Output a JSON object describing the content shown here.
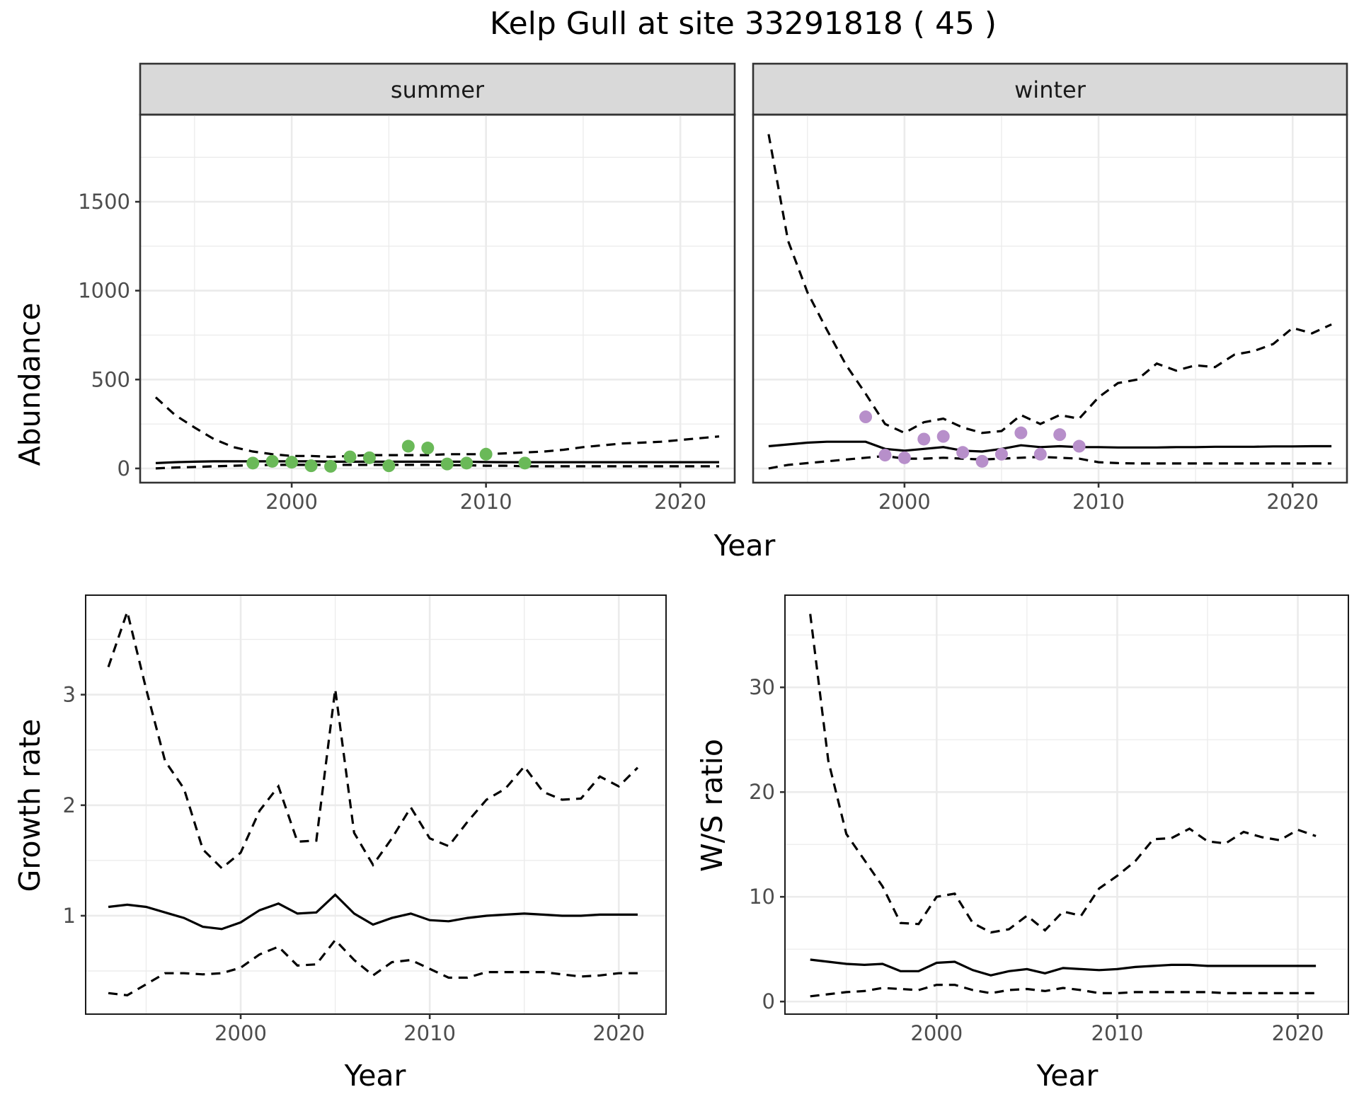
{
  "title": "Kelp Gull at site 33291818 ( 45 )",
  "chart_data": [
    {
      "id": "abundance",
      "type": "line",
      "facets": [
        "summer",
        "winter"
      ],
      "xlabel": "Year",
      "ylabel": "Abundance",
      "xlim": [
        1992.2,
        2022.8
      ],
      "ylim": [
        -80,
        1990
      ],
      "xticks": [
        2000,
        2010,
        2020
      ],
      "yticks": [
        0,
        500,
        1000,
        1500
      ],
      "point_colors": {
        "summer": "#6ab958",
        "winter": "#b78fca"
      },
      "panels": {
        "summer": {
          "years": [
            1993,
            1994,
            1995,
            1996,
            1997,
            1998,
            1999,
            2000,
            2001,
            2002,
            2003,
            2004,
            2005,
            2006,
            2007,
            2008,
            2009,
            2010,
            2011,
            2012,
            2013,
            2014,
            2015,
            2016,
            2017,
            2018,
            2019,
            2020,
            2021,
            2022
          ],
          "estimate": [
            30,
            35,
            38,
            40,
            40,
            40,
            40,
            40,
            40,
            38,
            38,
            38,
            38,
            38,
            38,
            38,
            38,
            36,
            35,
            35,
            35,
            35,
            35,
            35,
            35,
            35,
            35,
            35,
            35,
            35
          ],
          "upper": [
            400,
            300,
            230,
            165,
            120,
            95,
            80,
            70,
            70,
            65,
            70,
            75,
            75,
            75,
            75,
            80,
            80,
            80,
            85,
            90,
            95,
            105,
            120,
            130,
            140,
            145,
            150,
            160,
            170,
            180
          ],
          "lower": [
            0,
            5,
            8,
            12,
            15,
            18,
            20,
            20,
            20,
            20,
            20,
            20,
            20,
            20,
            20,
            18,
            18,
            15,
            15,
            12,
            12,
            12,
            12,
            12,
            12,
            12,
            12,
            12,
            12,
            12
          ],
          "observed_years": [
            1998,
            1999,
            2000,
            2001,
            2002,
            2003,
            2004,
            2005,
            2006,
            2007,
            2008,
            2009,
            2010,
            2012
          ],
          "observed": [
            30,
            40,
            35,
            15,
            12,
            65,
            60,
            15,
            125,
            115,
            25,
            30,
            80,
            30
          ]
        },
        "winter": {
          "years": [
            1993,
            1994,
            1995,
            1996,
            1997,
            1998,
            1999,
            2000,
            2001,
            2002,
            2003,
            2004,
            2005,
            2006,
            2007,
            2008,
            2009,
            2010,
            2011,
            2012,
            2013,
            2014,
            2015,
            2016,
            2017,
            2018,
            2019,
            2020,
            2021,
            2022
          ],
          "estimate": [
            125,
            135,
            145,
            150,
            150,
            150,
            110,
            100,
            110,
            120,
            100,
            95,
            110,
            130,
            120,
            125,
            120,
            120,
            118,
            118,
            118,
            120,
            120,
            122,
            122,
            122,
            124,
            124,
            125,
            125
          ],
          "upper": [
            1880,
            1280,
            990,
            780,
            580,
            420,
            250,
            200,
            260,
            280,
            230,
            200,
            210,
            300,
            250,
            300,
            280,
            400,
            480,
            500,
            590,
            550,
            580,
            570,
            640,
            660,
            700,
            790,
            760,
            810
          ],
          "lower": [
            0,
            20,
            30,
            40,
            50,
            60,
            70,
            55,
            55,
            60,
            55,
            50,
            55,
            60,
            65,
            60,
            55,
            35,
            30,
            28,
            28,
            28,
            28,
            28,
            28,
            28,
            28,
            28,
            28,
            28
          ],
          "observed_years": [
            1998,
            1999,
            2000,
            2001,
            2002,
            2003,
            2004,
            2005,
            2006,
            2007,
            2008,
            2009
          ],
          "observed": [
            290,
            75,
            60,
            165,
            180,
            90,
            40,
            80,
            200,
            80,
            190,
            125
          ]
        }
      }
    },
    {
      "id": "growth",
      "type": "line",
      "xlabel": "Year",
      "ylabel": "Growth rate",
      "xlim": [
        1991.8,
        2022.5
      ],
      "ylim": [
        0.11,
        3.9
      ],
      "xticks": [
        2000,
        2010,
        2020
      ],
      "yticks": [
        1,
        2,
        3
      ],
      "years": [
        1993,
        1994,
        1995,
        1996,
        1997,
        1998,
        1999,
        2000,
        2001,
        2002,
        2003,
        2004,
        2005,
        2006,
        2007,
        2008,
        2009,
        2010,
        2011,
        2012,
        2013,
        2014,
        2015,
        2016,
        2017,
        2018,
        2019,
        2020,
        2021
      ],
      "estimate": [
        1.08,
        1.1,
        1.08,
        1.03,
        0.98,
        0.9,
        0.88,
        0.94,
        1.05,
        1.11,
        1.02,
        1.03,
        1.19,
        1.02,
        0.92,
        0.98,
        1.02,
        0.96,
        0.95,
        0.98,
        1.0,
        1.01,
        1.02,
        1.01,
        1.0,
        1.0,
        1.01,
        1.01,
        1.01
      ],
      "upper": [
        3.25,
        3.75,
        3.05,
        2.4,
        2.15,
        1.6,
        1.43,
        1.57,
        1.95,
        2.17,
        1.67,
        1.68,
        3.05,
        1.75,
        1.46,
        1.7,
        1.98,
        1.7,
        1.63,
        1.85,
        2.05,
        2.15,
        2.35,
        2.12,
        2.05,
        2.06,
        2.26,
        2.17,
        2.34
      ],
      "lower": [
        0.3,
        0.28,
        0.38,
        0.48,
        0.48,
        0.47,
        0.48,
        0.53,
        0.65,
        0.72,
        0.55,
        0.56,
        0.78,
        0.6,
        0.46,
        0.58,
        0.6,
        0.52,
        0.44,
        0.44,
        0.49,
        0.49,
        0.49,
        0.49,
        0.47,
        0.45,
        0.46,
        0.48,
        0.48
      ]
    },
    {
      "id": "ws_ratio",
      "type": "line",
      "xlabel": "Year",
      "ylabel": "W/S ratio",
      "xlim": [
        1991.6,
        2022.8
      ],
      "ylim": [
        -1.2,
        38.8
      ],
      "xticks": [
        2000,
        2010,
        2020
      ],
      "yticks": [
        0,
        10,
        20,
        30
      ],
      "years": [
        1993,
        1994,
        1995,
        1996,
        1997,
        1998,
        1999,
        2000,
        2001,
        2002,
        2003,
        2004,
        2005,
        2006,
        2007,
        2008,
        2009,
        2010,
        2011,
        2012,
        2013,
        2014,
        2015,
        2016,
        2017,
        2018,
        2019,
        2020,
        2021
      ],
      "estimate": [
        4.0,
        3.8,
        3.6,
        3.5,
        3.6,
        2.9,
        2.9,
        3.7,
        3.8,
        3.0,
        2.5,
        2.9,
        3.1,
        2.7,
        3.2,
        3.1,
        3.0,
        3.1,
        3.3,
        3.4,
        3.5,
        3.5,
        3.4,
        3.4,
        3.4,
        3.4,
        3.4,
        3.4,
        3.4
      ],
      "upper": [
        37.0,
        23.0,
        16.0,
        13.5,
        11.0,
        7.5,
        7.4,
        10.0,
        10.3,
        7.5,
        6.6,
        6.9,
        8.2,
        6.8,
        8.6,
        8.2,
        10.8,
        12.0,
        13.4,
        15.5,
        15.6,
        16.5,
        15.3,
        15.1,
        16.2,
        15.7,
        15.4,
        16.4,
        15.8
      ],
      "lower": [
        0.5,
        0.7,
        0.9,
        1.0,
        1.3,
        1.2,
        1.1,
        1.6,
        1.6,
        1.1,
        0.8,
        1.1,
        1.2,
        1.0,
        1.3,
        1.1,
        0.8,
        0.8,
        0.9,
        0.9,
        0.9,
        0.9,
        0.9,
        0.8,
        0.8,
        0.8,
        0.8,
        0.8,
        0.8
      ]
    }
  ]
}
